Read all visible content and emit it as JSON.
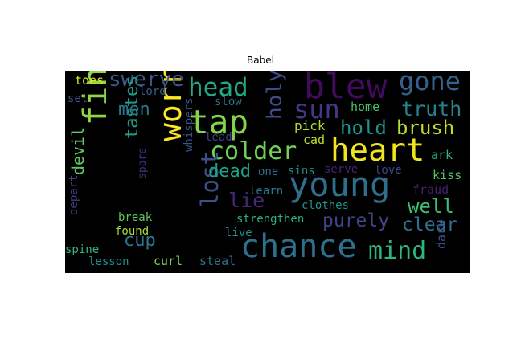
{
  "title": "Babel",
  "words": [
    {
      "text": "blew",
      "color": "#440a5e"
    },
    {
      "text": "heart",
      "color": "#f1e51d"
    },
    {
      "text": "young",
      "color": "#2e6f8e"
    },
    {
      "text": "chance",
      "color": "#2d708e"
    },
    {
      "text": "worried",
      "color": "#fde725"
    },
    {
      "text": "fingers",
      "color": "#8ed645"
    },
    {
      "text": "tap",
      "color": "#84d44b"
    },
    {
      "text": "gone",
      "color": "#34608d"
    },
    {
      "text": "head",
      "color": "#23a983"
    },
    {
      "text": "sun",
      "color": "#453781"
    },
    {
      "text": "colder",
      "color": "#73d056"
    },
    {
      "text": "lost",
      "color": "#3c508b"
    },
    {
      "text": "mind",
      "color": "#2fb47c"
    },
    {
      "text": "swerve",
      "color": "#38598c"
    },
    {
      "text": "holy",
      "color": "#3e4c8a"
    },
    {
      "text": "truth",
      "color": "#25858e"
    },
    {
      "text": "brush",
      "color": "#bddf26"
    },
    {
      "text": "hold",
      "color": "#20938c"
    },
    {
      "text": "tastes",
      "color": "#1f9e89"
    },
    {
      "text": "men",
      "color": "#2a788e"
    },
    {
      "text": "dead",
      "color": "#1fa188"
    },
    {
      "text": "lie",
      "color": "#482878"
    },
    {
      "text": "purely",
      "color": "#414487"
    },
    {
      "text": "well",
      "color": "#3bbb75"
    },
    {
      "text": "clear",
      "color": "#2c728e"
    },
    {
      "text": "devil",
      "color": "#5ec962"
    },
    {
      "text": "cup",
      "color": "#29798e"
    },
    {
      "text": "toes",
      "color": "#dde318"
    },
    {
      "text": "lord",
      "color": "#355f8d"
    },
    {
      "text": "set",
      "color": "#3b528b"
    },
    {
      "text": "slow",
      "color": "#2c718e"
    },
    {
      "text": "whispers",
      "color": "#3a548c"
    },
    {
      "text": "lead",
      "color": "#433e85"
    },
    {
      "text": "spare",
      "color": "#46307e"
    },
    {
      "text": "depart",
      "color": "#424186"
    },
    {
      "text": "home",
      "color": "#4ac16d"
    },
    {
      "text": "pick",
      "color": "#addc30"
    },
    {
      "text": "cad",
      "color": "#b5de2b"
    },
    {
      "text": "ark",
      "color": "#2db27d"
    },
    {
      "text": "kiss",
      "color": "#52c569"
    },
    {
      "text": "fraud",
      "color": "#481f70"
    },
    {
      "text": "dark",
      "color": "#3a538b"
    },
    {
      "text": "one",
      "color": "#2e6e8e"
    },
    {
      "text": "sins",
      "color": "#228b8d"
    },
    {
      "text": "serve",
      "color": "#482475"
    },
    {
      "text": "love",
      "color": "#404588"
    },
    {
      "text": "learn",
      "color": "#2b748e"
    },
    {
      "text": "clothes",
      "color": "#1f968b"
    },
    {
      "text": "strengthen",
      "color": "#2ab07f"
    },
    {
      "text": "break",
      "color": "#5cc863"
    },
    {
      "text": "found",
      "color": "#a8db34"
    },
    {
      "text": "live",
      "color": "#21918c"
    },
    {
      "text": "spine",
      "color": "#35b779"
    },
    {
      "text": "lesson",
      "color": "#228d8d"
    },
    {
      "text": "curl",
      "color": "#7ad151"
    },
    {
      "text": "steal",
      "color": "#2d708e"
    }
  ]
}
